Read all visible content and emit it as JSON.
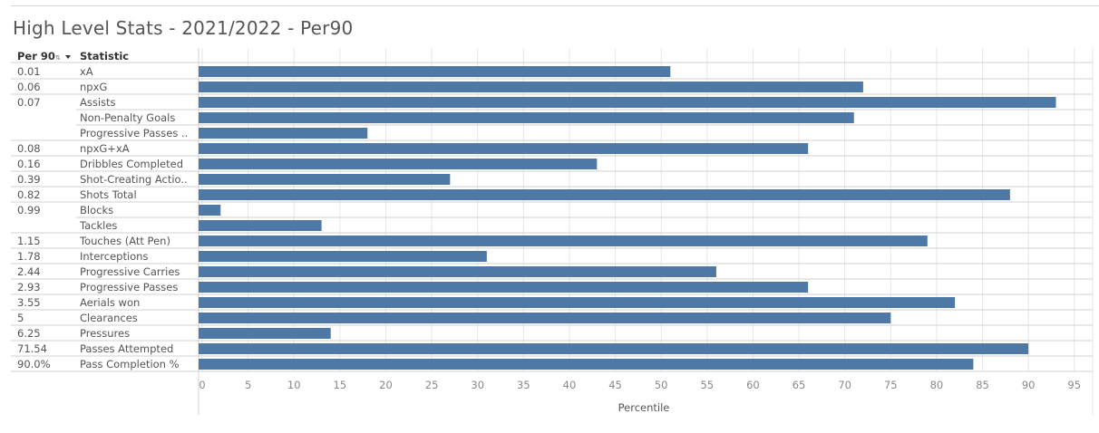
{
  "title": "High Level Stats - 2021/2022 - Per90",
  "table_headers": {
    "per90": "Per 90",
    "statistic": "Statistic"
  },
  "icons": {
    "sort": "sort-descending-icon"
  },
  "colors": {
    "bar": "#4e79a7",
    "grid": "#e6e6e6",
    "border": "#d0d0d0"
  },
  "chart_data": {
    "type": "bar",
    "orientation": "horizontal",
    "xlabel": "Percentile",
    "xlim": [
      0,
      97
    ],
    "xticks": [
      0,
      5,
      10,
      15,
      20,
      25,
      30,
      35,
      40,
      45,
      50,
      55,
      60,
      65,
      70,
      75,
      80,
      85,
      90,
      95
    ],
    "grid": true,
    "rows": [
      {
        "per90": "0.01",
        "statistic": "xA",
        "value": 51
      },
      {
        "per90": "0.06",
        "statistic": "npxG",
        "value": 72
      },
      {
        "per90": "0.07",
        "statistic": "Assists",
        "value": 93
      },
      {
        "per90": "",
        "statistic": "Non-Penalty Goals",
        "value": 71
      },
      {
        "per90": "",
        "statistic": "Progressive Passes ..",
        "value": 18
      },
      {
        "per90": "0.08",
        "statistic": "npxG+xA",
        "value": 66
      },
      {
        "per90": "0.16",
        "statistic": "Dribbles Completed",
        "value": 43
      },
      {
        "per90": "0.39",
        "statistic": "Shot-Creating Actio..",
        "value": 27
      },
      {
        "per90": "0.82",
        "statistic": "Shots Total",
        "value": 88
      },
      {
        "per90": "0.99",
        "statistic": "Blocks",
        "value": 2
      },
      {
        "per90": "",
        "statistic": "Tackles",
        "value": 13
      },
      {
        "per90": "1.15",
        "statistic": "Touches (Att Pen)",
        "value": 79
      },
      {
        "per90": "1.78",
        "statistic": "Interceptions",
        "value": 31
      },
      {
        "per90": "2.44",
        "statistic": "Progressive Carries",
        "value": 56
      },
      {
        "per90": "2.93",
        "statistic": "Progressive Passes",
        "value": 66
      },
      {
        "per90": "3.55",
        "statistic": "Aerials won",
        "value": 82
      },
      {
        "per90": "5",
        "statistic": "Clearances",
        "value": 75
      },
      {
        "per90": "6.25",
        "statistic": "Pressures",
        "value": 14
      },
      {
        "per90": "71.54",
        "statistic": "Passes Attempted",
        "value": 90
      },
      {
        "per90": "90.0%",
        "statistic": "Pass Completion %",
        "value": 84
      }
    ]
  }
}
